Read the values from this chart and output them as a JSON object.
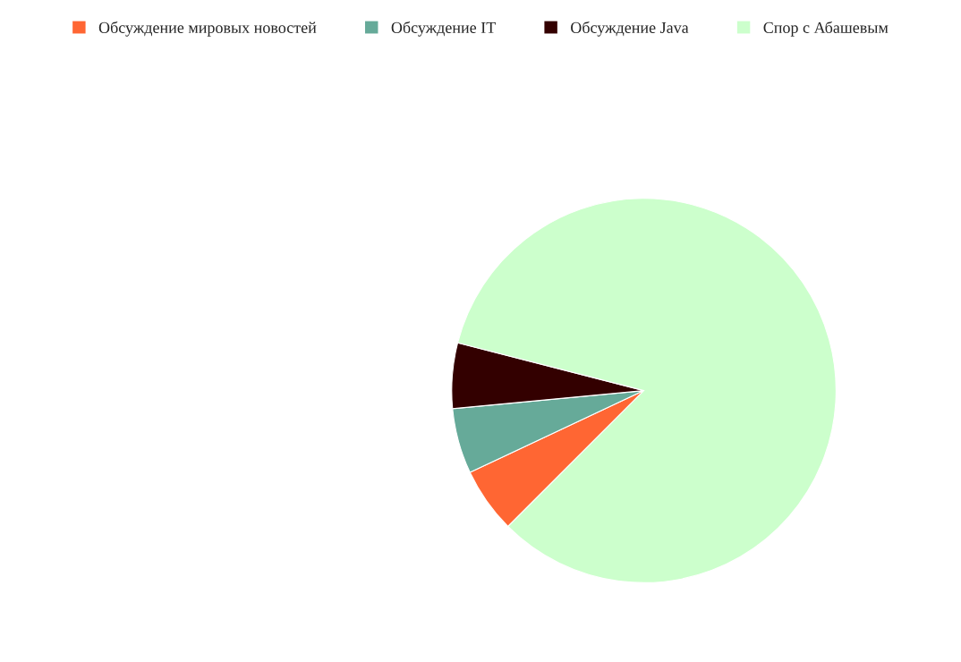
{
  "chart_data": {
    "type": "pie",
    "categories": [
      "Обсуждение мировых новостей",
      "Обсуждение IT",
      "Обсуждение Java",
      "Спор с Абашевым"
    ],
    "values": [
      5.5,
      5.5,
      5.5,
      83.5
    ],
    "colors": [
      "#ff6633",
      "#66aa99",
      "#330000",
      "#ccffcc"
    ],
    "legend": "top"
  }
}
